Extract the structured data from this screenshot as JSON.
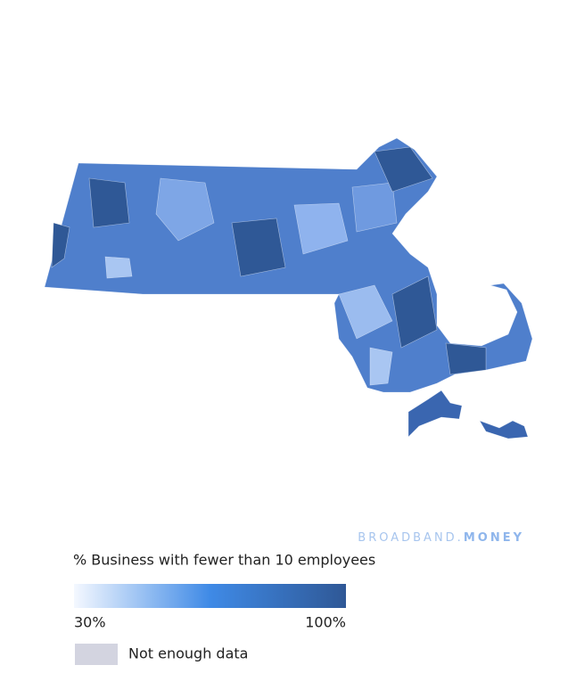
{
  "brand": {
    "name": "BROADBAND.",
    "suffix": "MONEY"
  },
  "legend": {
    "title": "% Business with fewer than 10 employees",
    "min": {
      "value": 30,
      "label": "30%"
    },
    "max": {
      "value": 100,
      "label": "100%"
    },
    "colors": [
      "#f4f8ff",
      "#3f8ae6",
      "#2f5896"
    ],
    "no_data": {
      "label": "Not enough data",
      "color": "#d3d4e0"
    }
  }
}
